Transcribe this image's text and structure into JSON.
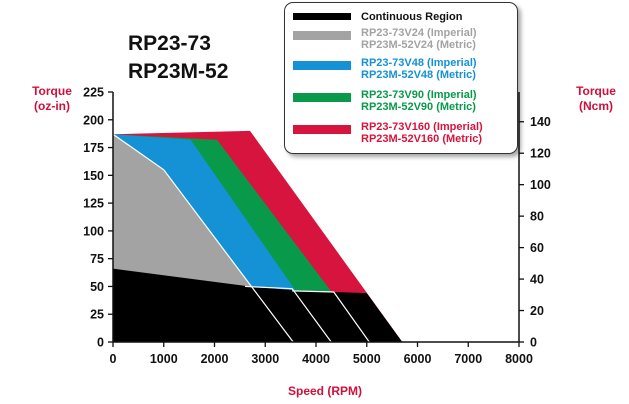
{
  "chart_data": {
    "type": "area",
    "title_lines": [
      "RP23-73",
      "RP23M-52"
    ],
    "xlabel": "Speed (RPM)",
    "ylabel_left": [
      "Torque",
      "(oz-in)"
    ],
    "ylabel_right": [
      "Torque",
      "(Ncm)"
    ],
    "xlim": [
      0,
      8000
    ],
    "ylim_left": [
      0,
      225
    ],
    "ylim_right_ncm": [
      0,
      158.9
    ],
    "x_ticks": [
      0,
      1000,
      2000,
      3000,
      4000,
      5000,
      6000,
      7000,
      8000
    ],
    "y_ticks_left": [
      0,
      25,
      50,
      75,
      100,
      125,
      150,
      175,
      200,
      225
    ],
    "y_ticks_right": [
      0,
      20,
      40,
      60,
      80,
      100,
      120,
      140
    ],
    "series": [
      {
        "key": "v160",
        "name_lines": [
          "RP23-73V160 (Imperial)",
          "RP23M-52V160 (Metric)"
        ],
        "color": "#d7143d",
        "points": [
          [
            0,
            187
          ],
          [
            2700,
            190
          ],
          [
            5700,
            0
          ]
        ]
      },
      {
        "key": "v90",
        "name_lines": [
          "RP23-73V90 (Imperial)",
          "RP23M-52V90 (Metric)"
        ],
        "color": "#089a4a",
        "points": [
          [
            0,
            187
          ],
          [
            2050,
            182
          ],
          [
            5050,
            0
          ]
        ]
      },
      {
        "key": "v48",
        "name_lines": [
          "RP23-73V48 (Imperial)",
          "RP23M-52V48 (Metric)"
        ],
        "color": "#1592d6",
        "points": [
          [
            0,
            187
          ],
          [
            1530,
            182
          ],
          [
            4300,
            0
          ]
        ]
      },
      {
        "key": "v24",
        "name_lines": [
          "RP23-73V24 (Imperial)",
          "RP23M-52V24 (Metric)"
        ],
        "color": "#a3a3a3",
        "points": [
          [
            0,
            187
          ],
          [
            1000,
            155
          ],
          [
            3550,
            0
          ]
        ]
      },
      {
        "key": "continuous",
        "name_lines": [
          "Continuous Region"
        ],
        "color": "#000000",
        "points": [
          [
            0,
            66
          ],
          [
            2700,
            50
          ],
          [
            3700,
            46
          ],
          [
            5000,
            44
          ],
          [
            5700,
            0
          ]
        ]
      }
    ],
    "separator_lines": [
      [
        [
          0,
          187
        ],
        [
          1000,
          155
        ],
        [
          3550,
          0
        ]
      ],
      [
        [
          2600,
          50
        ],
        [
          3530,
          48
        ],
        [
          4300,
          0
        ]
      ],
      [
        [
          3530,
          46
        ],
        [
          4350,
          45
        ],
        [
          5050,
          0
        ]
      ]
    ],
    "legend_order": [
      "continuous",
      "v24",
      "v48",
      "v90",
      "v160"
    ]
  }
}
